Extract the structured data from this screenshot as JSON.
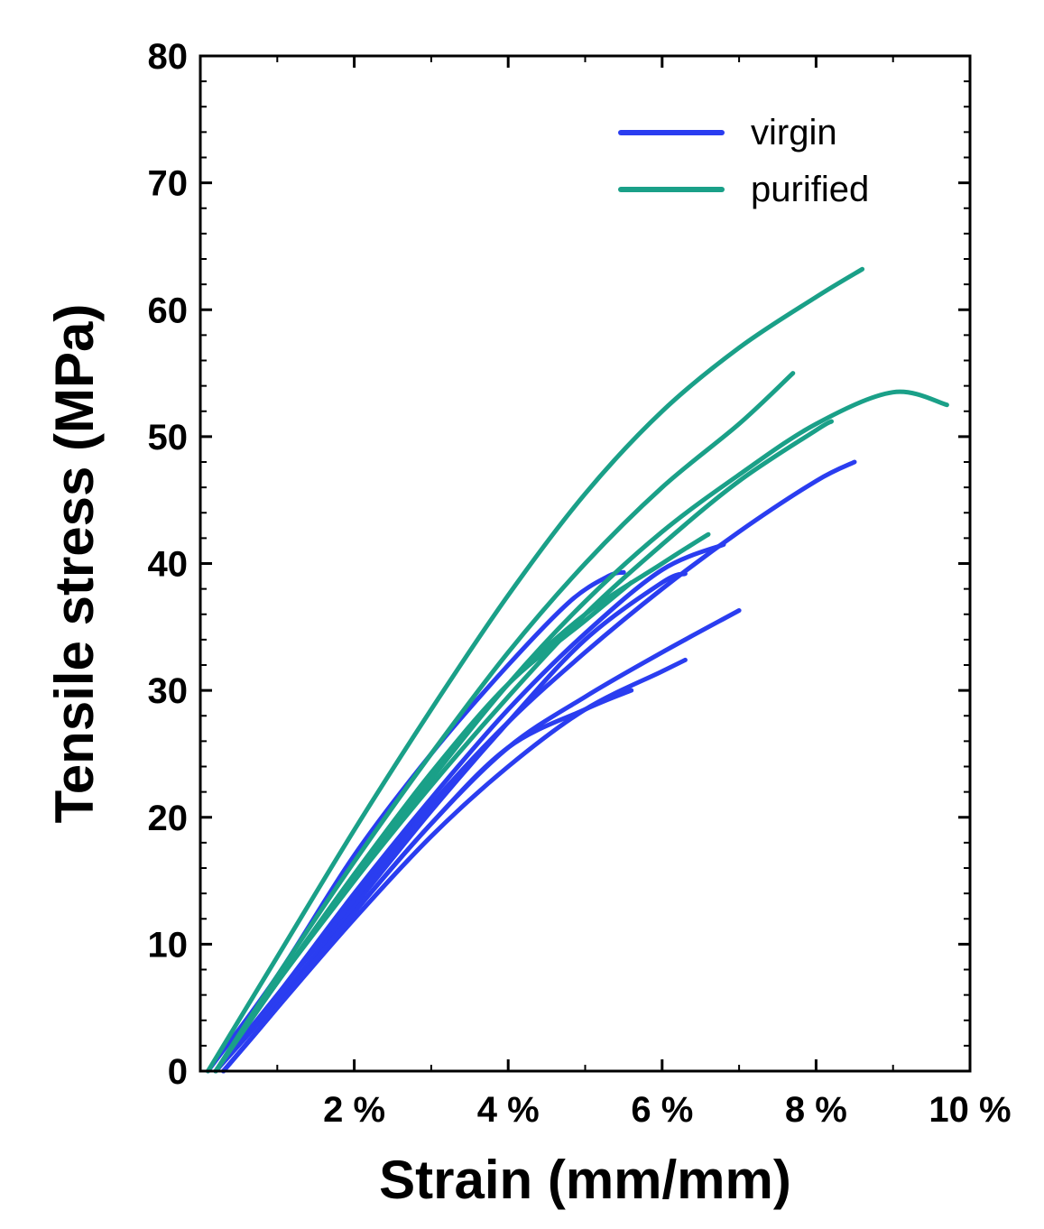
{
  "chart_data": {
    "type": "line",
    "title": "",
    "xlabel": "Strain (mm/mm)",
    "ylabel": "Tensile stress (MPa)",
    "xlim": [
      0,
      10
    ],
    "ylim": [
      0,
      80
    ],
    "x_ticks": [
      2,
      4,
      6,
      8,
      10
    ],
    "x_tick_labels": [
      "2 %",
      "4 %",
      "6 %",
      "8 %",
      "10 %"
    ],
    "y_ticks": [
      0,
      10,
      20,
      30,
      40,
      50,
      60,
      70,
      80
    ],
    "y_tick_labels": [
      "0",
      "10",
      "20",
      "30",
      "40",
      "50",
      "60",
      "70",
      "80"
    ],
    "grid": false,
    "legend_position": "top-right",
    "legend": [
      {
        "label": "virgin",
        "color": "#2a3df0"
      },
      {
        "label": "purified",
        "color": "#1aa088"
      }
    ],
    "series": [
      {
        "name": "virgin",
        "color": "#2a3df0",
        "x": [
          0.1,
          1.0,
          2.0,
          3.0,
          4.0,
          4.8,
          5.3,
          5.5
        ],
        "y": [
          0,
          7.5,
          17,
          25,
          32,
          37,
          39,
          39.3
        ]
      },
      {
        "name": "virgin",
        "color": "#2a3df0",
        "x": [
          0.2,
          1.0,
          2.0,
          3.0,
          4.0,
          5.0,
          6.0,
          6.8
        ],
        "y": [
          0,
          6,
          14,
          21.5,
          28.5,
          34.5,
          39.5,
          41.5
        ]
      },
      {
        "name": "virgin",
        "color": "#2a3df0",
        "x": [
          0.2,
          1.0,
          2.0,
          3.0,
          4.0,
          5.0,
          6.0,
          6.3
        ],
        "y": [
          0,
          5.5,
          13,
          20.5,
          27.5,
          34,
          38.5,
          39.2
        ]
      },
      {
        "name": "virgin",
        "color": "#2a3df0",
        "x": [
          0.3,
          1.0,
          2.0,
          3.0,
          4.0,
          5.0,
          5.6
        ],
        "y": [
          0,
          5,
          12.5,
          19.5,
          25.5,
          28.5,
          30
        ]
      },
      {
        "name": "virgin",
        "color": "#2a3df0",
        "x": [
          0.3,
          1.0,
          2.0,
          3.0,
          4.0,
          5.0,
          6.0,
          6.3
        ],
        "y": [
          0,
          5,
          12,
          18.5,
          24,
          28.5,
          31.5,
          32.4
        ]
      },
      {
        "name": "virgin",
        "color": "#2a3df0",
        "x": [
          0.3,
          1.0,
          2.0,
          3.0,
          4.0,
          5.0,
          6.0,
          7.0
        ],
        "y": [
          0,
          5,
          12.5,
          19.5,
          25.5,
          29.5,
          33,
          36.3
        ]
      },
      {
        "name": "virgin",
        "color": "#2a3df0",
        "x": [
          0.2,
          1.0,
          2.0,
          3.0,
          4.0,
          5.0,
          6.0,
          7.0,
          8.0,
          8.5
        ],
        "y": [
          0,
          6,
          13.5,
          21,
          27.5,
          33,
          38,
          42.5,
          46.5,
          48
        ]
      },
      {
        "name": "purified",
        "color": "#1aa088",
        "x": [
          0.1,
          1.0,
          2.0,
          3.0,
          4.0,
          5.0,
          6.0,
          7.0,
          8.0,
          8.6
        ],
        "y": [
          0,
          9,
          19,
          28.5,
          37.5,
          45.5,
          52,
          57,
          61,
          63.2
        ]
      },
      {
        "name": "purified",
        "color": "#1aa088",
        "x": [
          0.2,
          1.0,
          2.0,
          3.0,
          4.0,
          5.0,
          6.0,
          7.0,
          7.7
        ],
        "y": [
          0,
          7.5,
          16.5,
          25,
          33,
          40,
          46,
          51,
          55
        ]
      },
      {
        "name": "purified",
        "color": "#1aa088",
        "x": [
          0.2,
          1.0,
          2.0,
          3.0,
          4.0,
          5.0,
          6.0,
          7.0,
          8.0,
          9.0,
          9.7
        ],
        "y": [
          0,
          7,
          15,
          23,
          30.5,
          37,
          42.5,
          47,
          51,
          53.5,
          52.5
        ]
      },
      {
        "name": "purified",
        "color": "#1aa088",
        "x": [
          0.2,
          1.0,
          2.0,
          3.0,
          4.0,
          5.0,
          6.0,
          7.0,
          8.0,
          8.2
        ],
        "y": [
          0,
          7,
          15,
          22.5,
          29.5,
          36,
          41.5,
          46.5,
          50.5,
          51.2
        ]
      },
      {
        "name": "purified",
        "color": "#1aa088",
        "x": [
          0.2,
          1.0,
          2.0,
          3.0,
          4.0,
          5.0,
          6.0,
          6.6
        ],
        "y": [
          0,
          7,
          15.5,
          23.5,
          30.5,
          36,
          40,
          42.3
        ]
      },
      {
        "name": "purified",
        "color": "#1aa088",
        "x": [
          0.2,
          1.0,
          2.0,
          3.0,
          4.0,
          5.0,
          5.6
        ],
        "y": [
          0,
          7,
          15.5,
          23.5,
          30.5,
          35.5,
          38.5
        ]
      }
    ]
  }
}
